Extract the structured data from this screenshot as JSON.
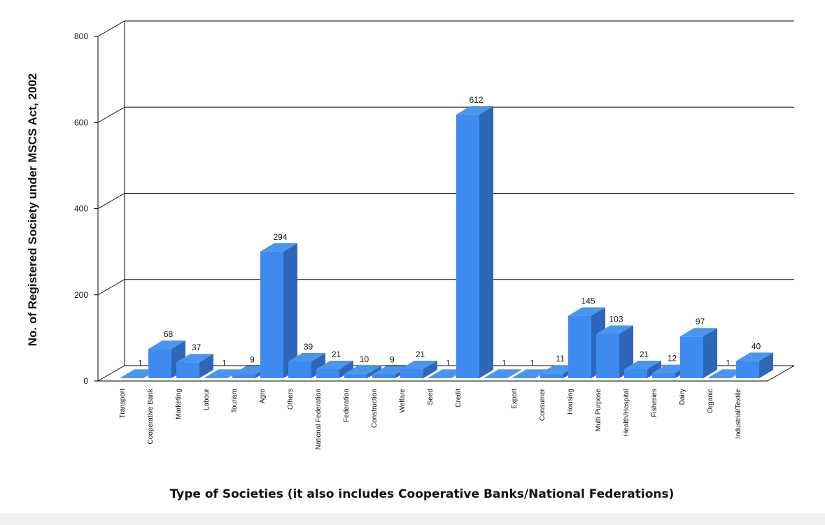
{
  "chart_data": {
    "type": "bar3d",
    "y_label": "No. of Registered Society under MSCS Act, 2002",
    "x_label": "Type of Societies (it also includes Cooperative Banks/National Federations)",
    "categories": [
      "Transport",
      "Cooperative Bank",
      "Marketing",
      "Labour",
      "Tourism",
      "Agro",
      "Others",
      "National Federation",
      "Federation",
      "Construction",
      "Welfare",
      "Seed",
      "Credit",
      null,
      "Export",
      "Consumer",
      "Housing",
      "Multi Purpose",
      "Health/Hospital",
      "Fisheries",
      "Dairy",
      "Organic",
      "Industrial/Textile"
    ],
    "values": [
      1,
      68,
      37,
      1,
      9,
      294,
      39,
      21,
      10,
      9,
      21,
      1,
      612,
      1,
      1,
      11,
      145,
      103,
      21,
      12,
      97,
      1,
      40
    ],
    "color": "#3d8bf0",
    "ylim": [
      0,
      800
    ],
    "yticks": [
      0,
      200,
      400,
      600,
      800
    ],
    "grid": true
  }
}
